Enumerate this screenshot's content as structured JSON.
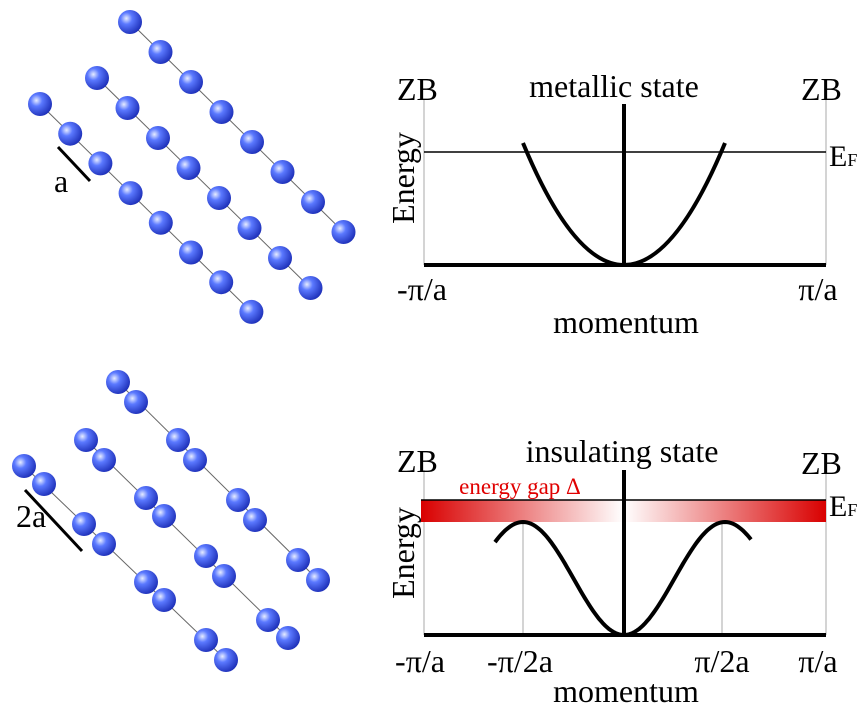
{
  "top": {
    "lattice_label": "a",
    "zb_left": "ZB",
    "title": "metallic state",
    "zb_right": "ZB",
    "fermi_label": "E",
    "fermi_subscript": "F",
    "y_label": "Energy",
    "x_labels": [
      "-π/a",
      "π/a"
    ],
    "x_label": "momentum"
  },
  "bottom": {
    "lattice_label": "2a",
    "zb_left": "ZB",
    "title": "insulating state",
    "zb_right": "ZB",
    "gap_label": "energy gap Δ",
    "fermi_label": "E",
    "fermi_subscript": "F",
    "y_label": "Energy",
    "x_labels": [
      "-π/a",
      "-π/2a",
      "π/2a",
      "π/a"
    ],
    "x_label": "momentum"
  }
}
